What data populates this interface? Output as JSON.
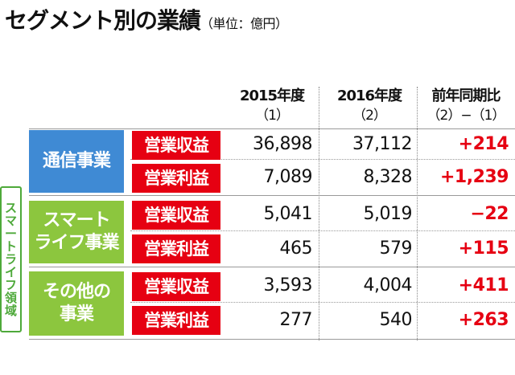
{
  "title": "セグメント別の業績",
  "unit": "（単位：億円）",
  "columns": [
    {
      "label": "2015年度",
      "sub": "（1）"
    },
    {
      "label": "2016年度",
      "sub": "（2）"
    },
    {
      "label": "前年同期比",
      "sub": "（2）−（1）"
    }
  ],
  "side_label": [
    "ス",
    "マ",
    "ー",
    "ト",
    "ラ",
    "イ",
    "フ",
    "領",
    "域"
  ],
  "groups": [
    {
      "name_lines": [
        "通信事業"
      ],
      "color": "#3f8ad4"
    },
    {
      "name_lines": [
        "スマート",
        "ライフ事業"
      ],
      "color": "#8cc63e"
    },
    {
      "name_lines": [
        "その他の",
        "事業"
      ],
      "color": "#8cc63e"
    }
  ],
  "rows": [
    {
      "label": "営業収益",
      "v2015": "36,898",
      "v2016": "37,112",
      "diff": "+214"
    },
    {
      "label": "営業利益",
      "v2015": "7,089",
      "v2016": "8,328",
      "diff": "+1,239"
    },
    {
      "label": "営業収益",
      "v2015": "5,041",
      "v2016": "5,019",
      "diff": "−22"
    },
    {
      "label": "営業利益",
      "v2015": "465",
      "v2016": "579",
      "diff": "+115"
    },
    {
      "label": "営業収益",
      "v2015": "3,593",
      "v2016": "4,004",
      "diff": "+411"
    },
    {
      "label": "営業利益",
      "v2015": "277",
      "v2016": "540",
      "diff": "+263"
    }
  ],
  "colors": {
    "label_red": "#e60012",
    "diff_red": "#e60012",
    "side_green": "#4ea93a"
  }
}
